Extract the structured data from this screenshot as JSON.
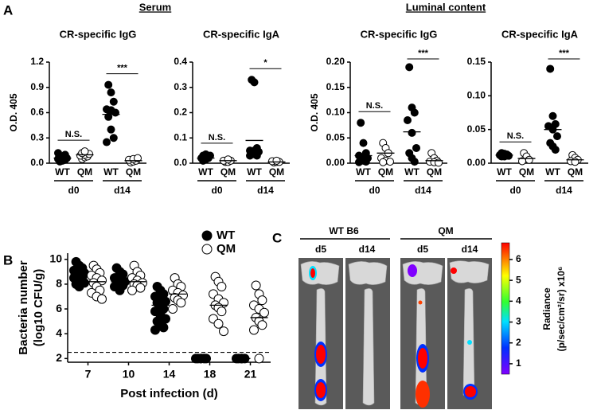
{
  "panel_labels": [
    "A",
    "B",
    "C"
  ],
  "group_titles": [
    "Serum",
    "Luminal content"
  ],
  "chart_data": [
    {
      "type": "dot",
      "title": "CR-specific IgG",
      "ylabel": "O.D. 405",
      "categories": [
        "d0",
        "d14"
      ],
      "ylim": [
        0,
        1.2
      ],
      "yticks": [
        {
          "value": 0,
          "label": "0.0"
        },
        0.3,
        0.6,
        0.9,
        1.2
      ],
      "series": [
        {
          "name": "WT",
          "color": "#000000",
          "values": [
            [
              0.02,
              0.03,
              0.04,
              0.05,
              0.05,
              0.06,
              0.07,
              0.08,
              0.1,
              0.12
            ],
            [
              0.93,
              0.84,
              0.73,
              0.64,
              0.63,
              0.6,
              0.55,
              0.4,
              0.3,
              0.25
            ]
          ],
          "means": [
            0.06,
            0.58
          ]
        },
        {
          "name": "QM",
          "color": "#ffffff",
          "values": [
            [
              0.05,
              0.07,
              0.08,
              0.09,
              0.1,
              0.11,
              0.12,
              0.14
            ],
            [
              0.01,
              0.02,
              0.03,
              0.04,
              0.05,
              0.06
            ]
          ],
          "means": [
            0.1,
            0.03
          ]
        }
      ],
      "annotations": [
        "N.S.",
        "***"
      ]
    },
    {
      "type": "dot",
      "title": "CR-specific IgA",
      "categories": [
        "d0",
        "d14"
      ],
      "ylim": [
        0,
        0.4
      ],
      "yticks": [
        {
          "value": 0,
          "label": "0.0"
        },
        0.1,
        0.2,
        0.3,
        0.4
      ],
      "series": [
        {
          "name": "WT",
          "color": "#000000",
          "values": [
            [
              0.01,
              0.015,
              0.02,
              0.02,
              0.025,
              0.03,
              0.03,
              0.035
            ],
            [
              0.33,
              0.32,
              0.06,
              0.05,
              0.05,
              0.045,
              0.04,
              0.035,
              0.03,
              0.03
            ]
          ],
          "means": [
            0.02,
            0.09
          ]
        },
        {
          "name": "QM",
          "color": "#ffffff",
          "values": [
            [
              0.005,
              0.005,
              0.01,
              0.01,
              0.015
            ],
            [
              0.003,
              0.005,
              0.005,
              0.008,
              0.01
            ]
          ],
          "means": [
            0.01,
            0.005
          ]
        }
      ],
      "annotations": [
        "N.S.",
        "*"
      ]
    },
    {
      "type": "dot",
      "title": "CR-specific IgG",
      "ylabel": "O.D. 405",
      "categories": [
        "d0",
        "d14"
      ],
      "ylim": [
        0,
        0.2
      ],
      "yticks": [
        {
          "value": 0,
          "label": "0.00"
        },
        {
          "value": 0.05,
          "label": "0.05"
        },
        {
          "value": 0.1,
          "label": "0.10"
        },
        {
          "value": 0.15,
          "label": "0.15"
        },
        {
          "value": 0.2,
          "label": "0.20"
        }
      ],
      "series": [
        {
          "name": "WT",
          "color": "#000000",
          "values": [
            [
              0.08,
              0.04,
              0.02,
              0.015,
              0.01,
              0.01,
              0.005,
              0.005,
              0.003,
              0.002
            ],
            [
              0.19,
              0.11,
              0.1,
              0.085,
              0.06,
              0.03,
              0.02,
              0.01,
              0.003
            ]
          ],
          "means": [
            0.015,
            0.062
          ]
        },
        {
          "name": "QM",
          "color": "#ffffff",
          "values": [
            [
              0.04,
              0.03,
              0.02,
              0.01,
              0.005,
              0.003,
              0.002
            ],
            [
              0.02,
              0.01,
              0.005,
              0.003,
              0.002,
              0.001
            ]
          ],
          "means": [
            0.02,
            0.005
          ]
        }
      ],
      "annotations": [
        "N.S.",
        "***"
      ]
    },
    {
      "type": "dot",
      "title": "CR-specific IgA",
      "categories": [
        "d0",
        "d14"
      ],
      "ylim": [
        0,
        0.15
      ],
      "yticks": [
        {
          "value": 0,
          "label": "0.00"
        },
        {
          "value": 0.05,
          "label": "0.05"
        },
        {
          "value": 0.1,
          "label": "0.10"
        },
        {
          "value": 0.15,
          "label": "0.15"
        }
      ],
      "series": [
        {
          "name": "WT",
          "color": "#000000",
          "values": [
            [
              0.015,
              0.014,
              0.013,
              0.012,
              0.012,
              0.011,
              0.01,
              0.01
            ],
            [
              0.14,
              0.07,
              0.058,
              0.055,
              0.05,
              0.04,
              0.03,
              0.025,
              0.02
            ]
          ],
          "means": [
            0.012,
            0.05
          ]
        },
        {
          "name": "QM",
          "color": "#ffffff",
          "values": [
            [
              0.015,
              0.01,
              0.005,
              0.003
            ],
            [
              0.012,
              0.008,
              0.005,
              0.003,
              0.002
            ]
          ],
          "means": [
            0.007,
            0.005
          ]
        }
      ],
      "annotations": [
        "N.S.",
        "***"
      ]
    },
    {
      "type": "dot",
      "ylabel": [
        "Bacteria number",
        "(log10 CFU/g)"
      ],
      "xlabel": "Post infection (d)",
      "categories": [
        7,
        10,
        14,
        18,
        21
      ],
      "ylim": [
        1.7,
        10.5
      ],
      "yticks": [
        2,
        4,
        6,
        8,
        10
      ],
      "threshold": 2.5,
      "legend": "upper right",
      "series": [
        {
          "name": "WT",
          "color": "#000000",
          "values": [
            [
              9.8,
              9.5,
              9.3,
              9.1,
              9,
              8.9,
              8.8,
              8.7,
              8.6,
              8.5,
              8.3,
              8.1,
              8,
              7.8
            ],
            [
              9.3,
              9,
              8.8,
              8.5,
              8.3,
              8.2,
              8.1,
              8,
              7.9,
              7.8,
              7.5
            ],
            [
              7.8,
              7.5,
              7.2,
              7,
              6.8,
              6.6,
              6.5,
              6.3,
              6,
              5.8,
              5.5,
              5.2,
              5,
              4.8,
              4.5,
              4.3
            ],
            [
              2,
              2,
              2,
              2,
              2,
              2
            ],
            [
              2,
              2,
              2,
              2,
              2
            ]
          ],
          "means": [
            8.8,
            8.2,
            6.3,
            2,
            2
          ]
        },
        {
          "name": "QM",
          "color": "#ffffff",
          "values": [
            [
              9.5,
              9.2,
              8.9,
              8.7,
              8.5,
              8.3,
              8.1,
              7.8,
              7.5,
              7.3,
              7,
              6.8
            ],
            [
              9.5,
              9,
              8.7,
              8.5,
              8.3,
              8.1,
              8,
              7.9,
              7.7,
              7.5
            ],
            [
              8.5,
              8,
              7.8,
              7.5,
              7.3,
              7.1,
              6.9,
              6.7,
              6.5,
              6
            ],
            [
              8.6,
              8.2,
              7.8,
              7.2,
              6.8,
              6.5,
              6.3,
              6.1,
              5.8,
              5.2,
              4.8,
              4.2
            ],
            [
              7.9,
              7.2,
              6.7,
              6.3,
              6,
              5.7,
              5.3,
              5,
              4.7,
              4.3,
              2
            ]
          ],
          "means": [
            8.2,
            8.2,
            7.2,
            6.3,
            5.3
          ]
        }
      ]
    }
  ],
  "imaging": {
    "groups": [
      {
        "label": "WT B6",
        "days": [
          "d5",
          "d14"
        ]
      },
      {
        "label": "QM",
        "days": [
          "d5",
          "d14"
        ]
      }
    ],
    "colorbar": {
      "label": [
        "Radiance",
        "(p/sec/cm²/sr) x10⁶"
      ],
      "lim": [
        0.5,
        6.8
      ],
      "ticks": [
        1,
        2,
        3,
        4,
        5,
        6
      ]
    }
  }
}
